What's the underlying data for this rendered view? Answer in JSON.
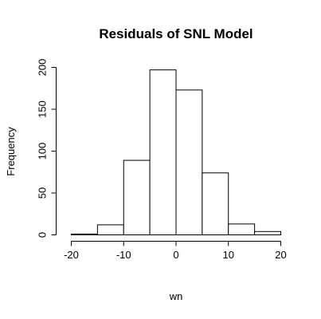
{
  "chart_data": {
    "type": "bar",
    "title": "Residuals of SNL Model",
    "xlabel": "wn",
    "ylabel": "Frequency",
    "bins": [
      {
        "from": -20,
        "to": -15,
        "count": 1
      },
      {
        "from": -15,
        "to": -10,
        "count": 12
      },
      {
        "from": -10,
        "to": -5,
        "count": 89
      },
      {
        "from": -5,
        "to": 0,
        "count": 197
      },
      {
        "from": 0,
        "to": 5,
        "count": 173
      },
      {
        "from": 5,
        "to": 10,
        "count": 74
      },
      {
        "from": 10,
        "to": 15,
        "count": 13
      },
      {
        "from": 15,
        "to": 20,
        "count": 4
      }
    ],
    "x_ticks": [
      "-20",
      "-10",
      "0",
      "10",
      "20"
    ],
    "y_ticks": [
      "0",
      "50",
      "100",
      "150",
      "200"
    ],
    "xlim": [
      -20,
      20
    ],
    "ylim": [
      0,
      200
    ],
    "grid": false,
    "legend": "none"
  }
}
